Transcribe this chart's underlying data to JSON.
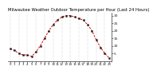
{
  "title": "Milwaukee Weather Outdoor Temperature per Hour (Last 24 Hours)",
  "hours": [
    0,
    1,
    2,
    3,
    4,
    5,
    6,
    7,
    8,
    9,
    10,
    11,
    12,
    13,
    14,
    15,
    16,
    17,
    18,
    19,
    20,
    21,
    22,
    23
  ],
  "temps": [
    8,
    7,
    5,
    4,
    4,
    3,
    6,
    10,
    15,
    20,
    24,
    27,
    29,
    30,
    30,
    29,
    28,
    27,
    24,
    20,
    14,
    9,
    5,
    2
  ],
  "line_color": "#dd0000",
  "marker_color": "#111111",
  "background_color": "#ffffff",
  "grid_color": "#999999",
  "ylim": [
    0,
    32
  ],
  "yticks": [
    5,
    10,
    15,
    20,
    25,
    30
  ],
  "ytick_labels": [
    "5",
    "10",
    "15",
    "20",
    "25",
    "30"
  ],
  "ylabel_fontsize": 3.2,
  "title_fontsize": 3.8,
  "xtick_fontsize": 2.8
}
